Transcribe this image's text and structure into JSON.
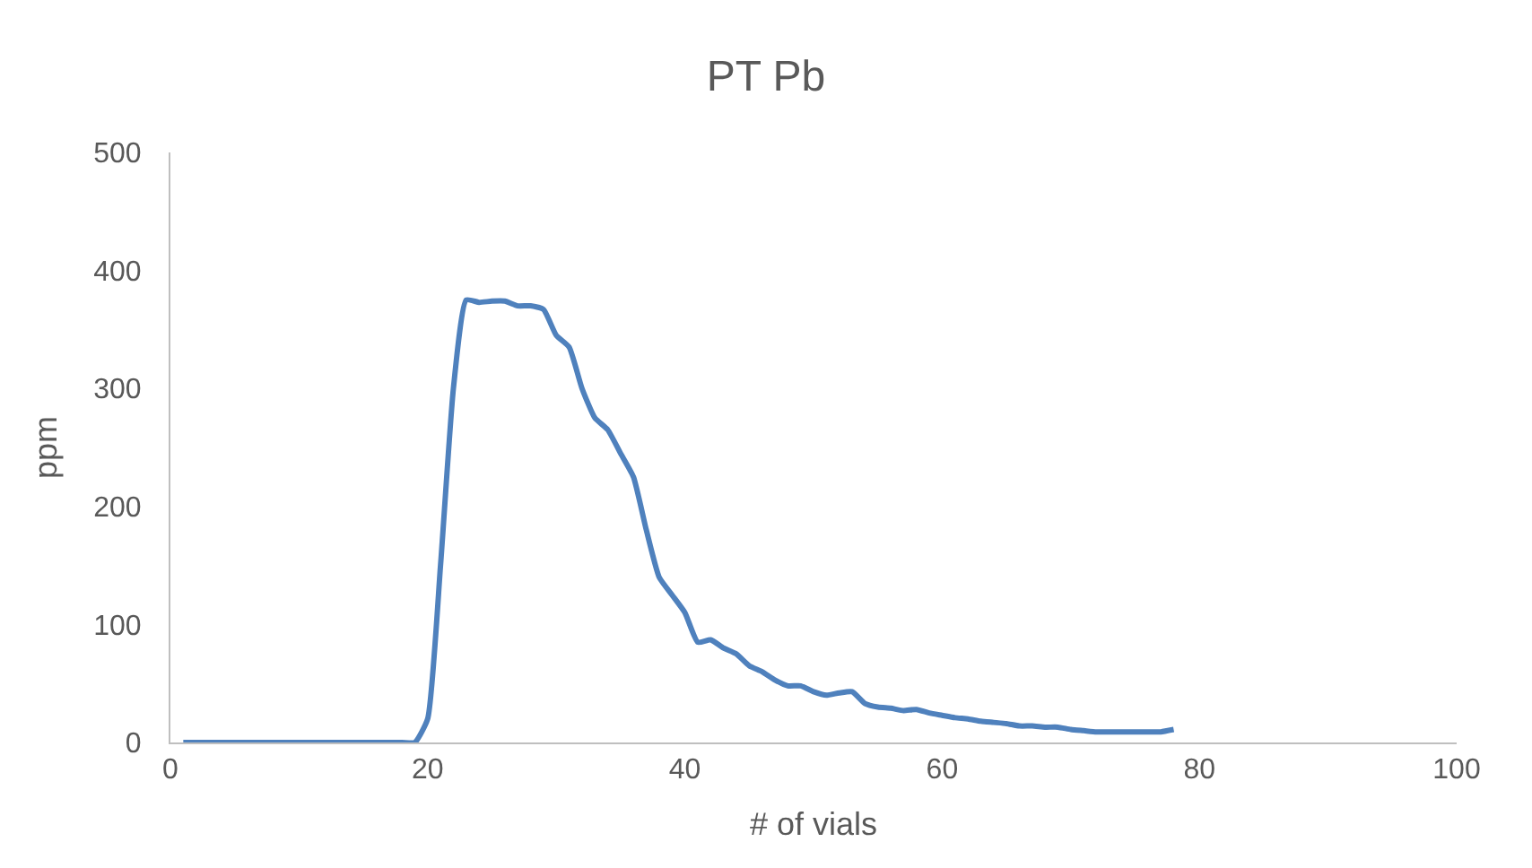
{
  "chart_data": {
    "type": "line",
    "title": "PT Pb",
    "xlabel": "# of vials",
    "ylabel": "ppm",
    "x": [
      1,
      5,
      10,
      15,
      18,
      19,
      20,
      21,
      22,
      23,
      24,
      25,
      26,
      27,
      28,
      29,
      30,
      31,
      32,
      33,
      34,
      35,
      36,
      37,
      38,
      39,
      40,
      41,
      42,
      43,
      44,
      45,
      46,
      47,
      48,
      49,
      50,
      51,
      52,
      53,
      54,
      55,
      56,
      57,
      58,
      59,
      60,
      61,
      62,
      63,
      64,
      65,
      66,
      67,
      68,
      69,
      70,
      71,
      72,
      73,
      74,
      75,
      76,
      77,
      78
    ],
    "series": [
      {
        "color": "#4f81bd",
        "values": [
          0,
          0,
          0,
          0,
          0,
          0,
          20,
          150,
          300,
          375,
          373,
          374,
          374,
          370,
          370,
          367,
          345,
          335,
          300,
          275,
          265,
          245,
          225,
          180,
          140,
          125,
          110,
          85,
          87,
          80,
          75,
          65,
          60,
          53,
          48,
          48,
          43,
          40,
          42,
          43,
          33,
          30,
          29,
          27,
          28,
          25,
          23,
          21,
          20,
          18,
          17,
          16,
          14,
          14,
          13,
          13,
          11,
          10,
          9,
          9,
          9,
          9,
          9,
          9,
          11
        ]
      }
    ],
    "xlim": [
      0,
      100
    ],
    "xticks": [
      0,
      20,
      40,
      60,
      80,
      100
    ],
    "ylim": [
      0,
      500
    ],
    "yticks": [
      0,
      100,
      200,
      300,
      400,
      500
    ],
    "marker": "none",
    "line_style": "solid"
  }
}
